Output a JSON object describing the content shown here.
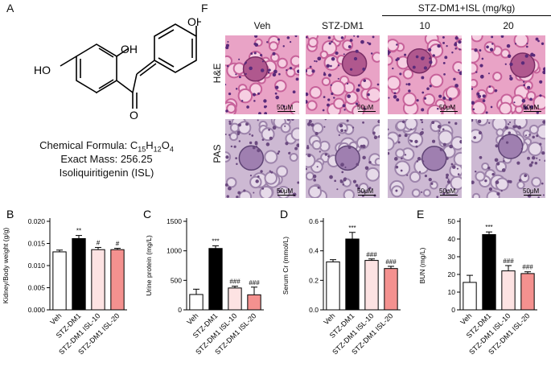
{
  "panel_a": {
    "letter": "A",
    "formula_label": "Chemical Formula: C",
    "formula_c": "15",
    "formula_h": "H",
    "formula_hn": "12",
    "formula_o": "O",
    "formula_on": "4",
    "exact_mass": "Exact Mass: 256.25",
    "compound": "Isoliquiritigenin (ISL)",
    "atoms": {
      "ho_left": "HO",
      "oh_mid": "OH",
      "oh_right": "OH",
      "o_keto": "O"
    }
  },
  "panel_f": {
    "letter": "F",
    "group_header": "STZ-DM1+ISL (mg/kg)",
    "columns": [
      "Veh",
      "STZ-DM1",
      "10",
      "20"
    ],
    "rows": [
      "H&E",
      "PAS"
    ],
    "scale_label": "50μM",
    "colors": {
      "he_bg": "#e9a3c6",
      "he_dark": "#5a2a7a",
      "pas_bg": "#cdb9d3",
      "pas_dark": "#6b4a80"
    }
  },
  "chart_data": [
    {
      "letter": "B",
      "type": "bar",
      "categories": [
        "Veh",
        "STZ-DM1",
        "STZ-DM1 ISL-10",
        "STZ-DM1 ISL-20"
      ],
      "values": [
        0.0131,
        0.0161,
        0.0136,
        0.0136
      ],
      "errors": [
        0.0004,
        0.0007,
        0.0005,
        0.0003
      ],
      "annotations": [
        "",
        "**",
        "#",
        "#"
      ],
      "bar_colors": [
        "#ffffff",
        "#000000",
        "#fde3e3",
        "#f4918f"
      ],
      "ylabel": "Kidney/Body weight (g/g)",
      "ylim": [
        0,
        0.02
      ],
      "yticks": [
        "0.000",
        "0.005",
        "0.010",
        "0.015",
        "0.020"
      ],
      "ytick_values": [
        0,
        0.005,
        0.01,
        0.015,
        0.02
      ]
    },
    {
      "letter": "C",
      "type": "bar",
      "categories": [
        "Veh",
        "STZ-DM1",
        "STZ-DM1 ISL-10",
        "STZ-DM1 ISL-20"
      ],
      "values": [
        260,
        1040,
        370,
        255
      ],
      "errors": [
        90,
        45,
        30,
        130
      ],
      "annotations": [
        "",
        "***",
        "###",
        "###"
      ],
      "bar_colors": [
        "#ffffff",
        "#000000",
        "#fde3e3",
        "#f4918f"
      ],
      "ylabel": "Urine protein (mg/L)",
      "ylim": [
        0,
        1500
      ],
      "yticks": [
        "0",
        "500",
        "1000",
        "1500"
      ],
      "ytick_values": [
        0,
        500,
        1000,
        1500
      ]
    },
    {
      "letter": "D",
      "type": "bar",
      "categories": [
        "Veh",
        "STZ-DM1",
        "STZ-DM1 ISL-10",
        "STZ-DM1 ISL-20"
      ],
      "values": [
        0.325,
        0.48,
        0.335,
        0.28
      ],
      "errors": [
        0.015,
        0.045,
        0.01,
        0.015
      ],
      "annotations": [
        "",
        "***",
        "###",
        "###"
      ],
      "bar_colors": [
        "#ffffff",
        "#000000",
        "#fde3e3",
        "#f4918f"
      ],
      "ylabel": "Serum Cr (mmol/L)",
      "ylim": [
        0,
        0.6
      ],
      "yticks": [
        "0.0",
        "0.2",
        "0.4",
        "0.6"
      ],
      "ytick_values": [
        0,
        0.2,
        0.4,
        0.6
      ]
    },
    {
      "letter": "E",
      "type": "bar",
      "categories": [
        "Veh",
        "STZ-DM1",
        "STZ-DM1 ISL-10",
        "STZ-DM1 ISL-20"
      ],
      "values": [
        15.5,
        42.5,
        22,
        20.5
      ],
      "errors": [
        4,
        1.5,
        3,
        1
      ],
      "annotations": [
        "",
        "***",
        "###",
        "###"
      ],
      "bar_colors": [
        "#ffffff",
        "#000000",
        "#fde3e3",
        "#f4918f"
      ],
      "ylabel": "BUN (mg/L)",
      "ylim": [
        0,
        50
      ],
      "yticks": [
        "0",
        "10",
        "20",
        "30",
        "40",
        "50"
      ],
      "ytick_values": [
        0,
        10,
        20,
        30,
        40,
        50
      ]
    }
  ]
}
